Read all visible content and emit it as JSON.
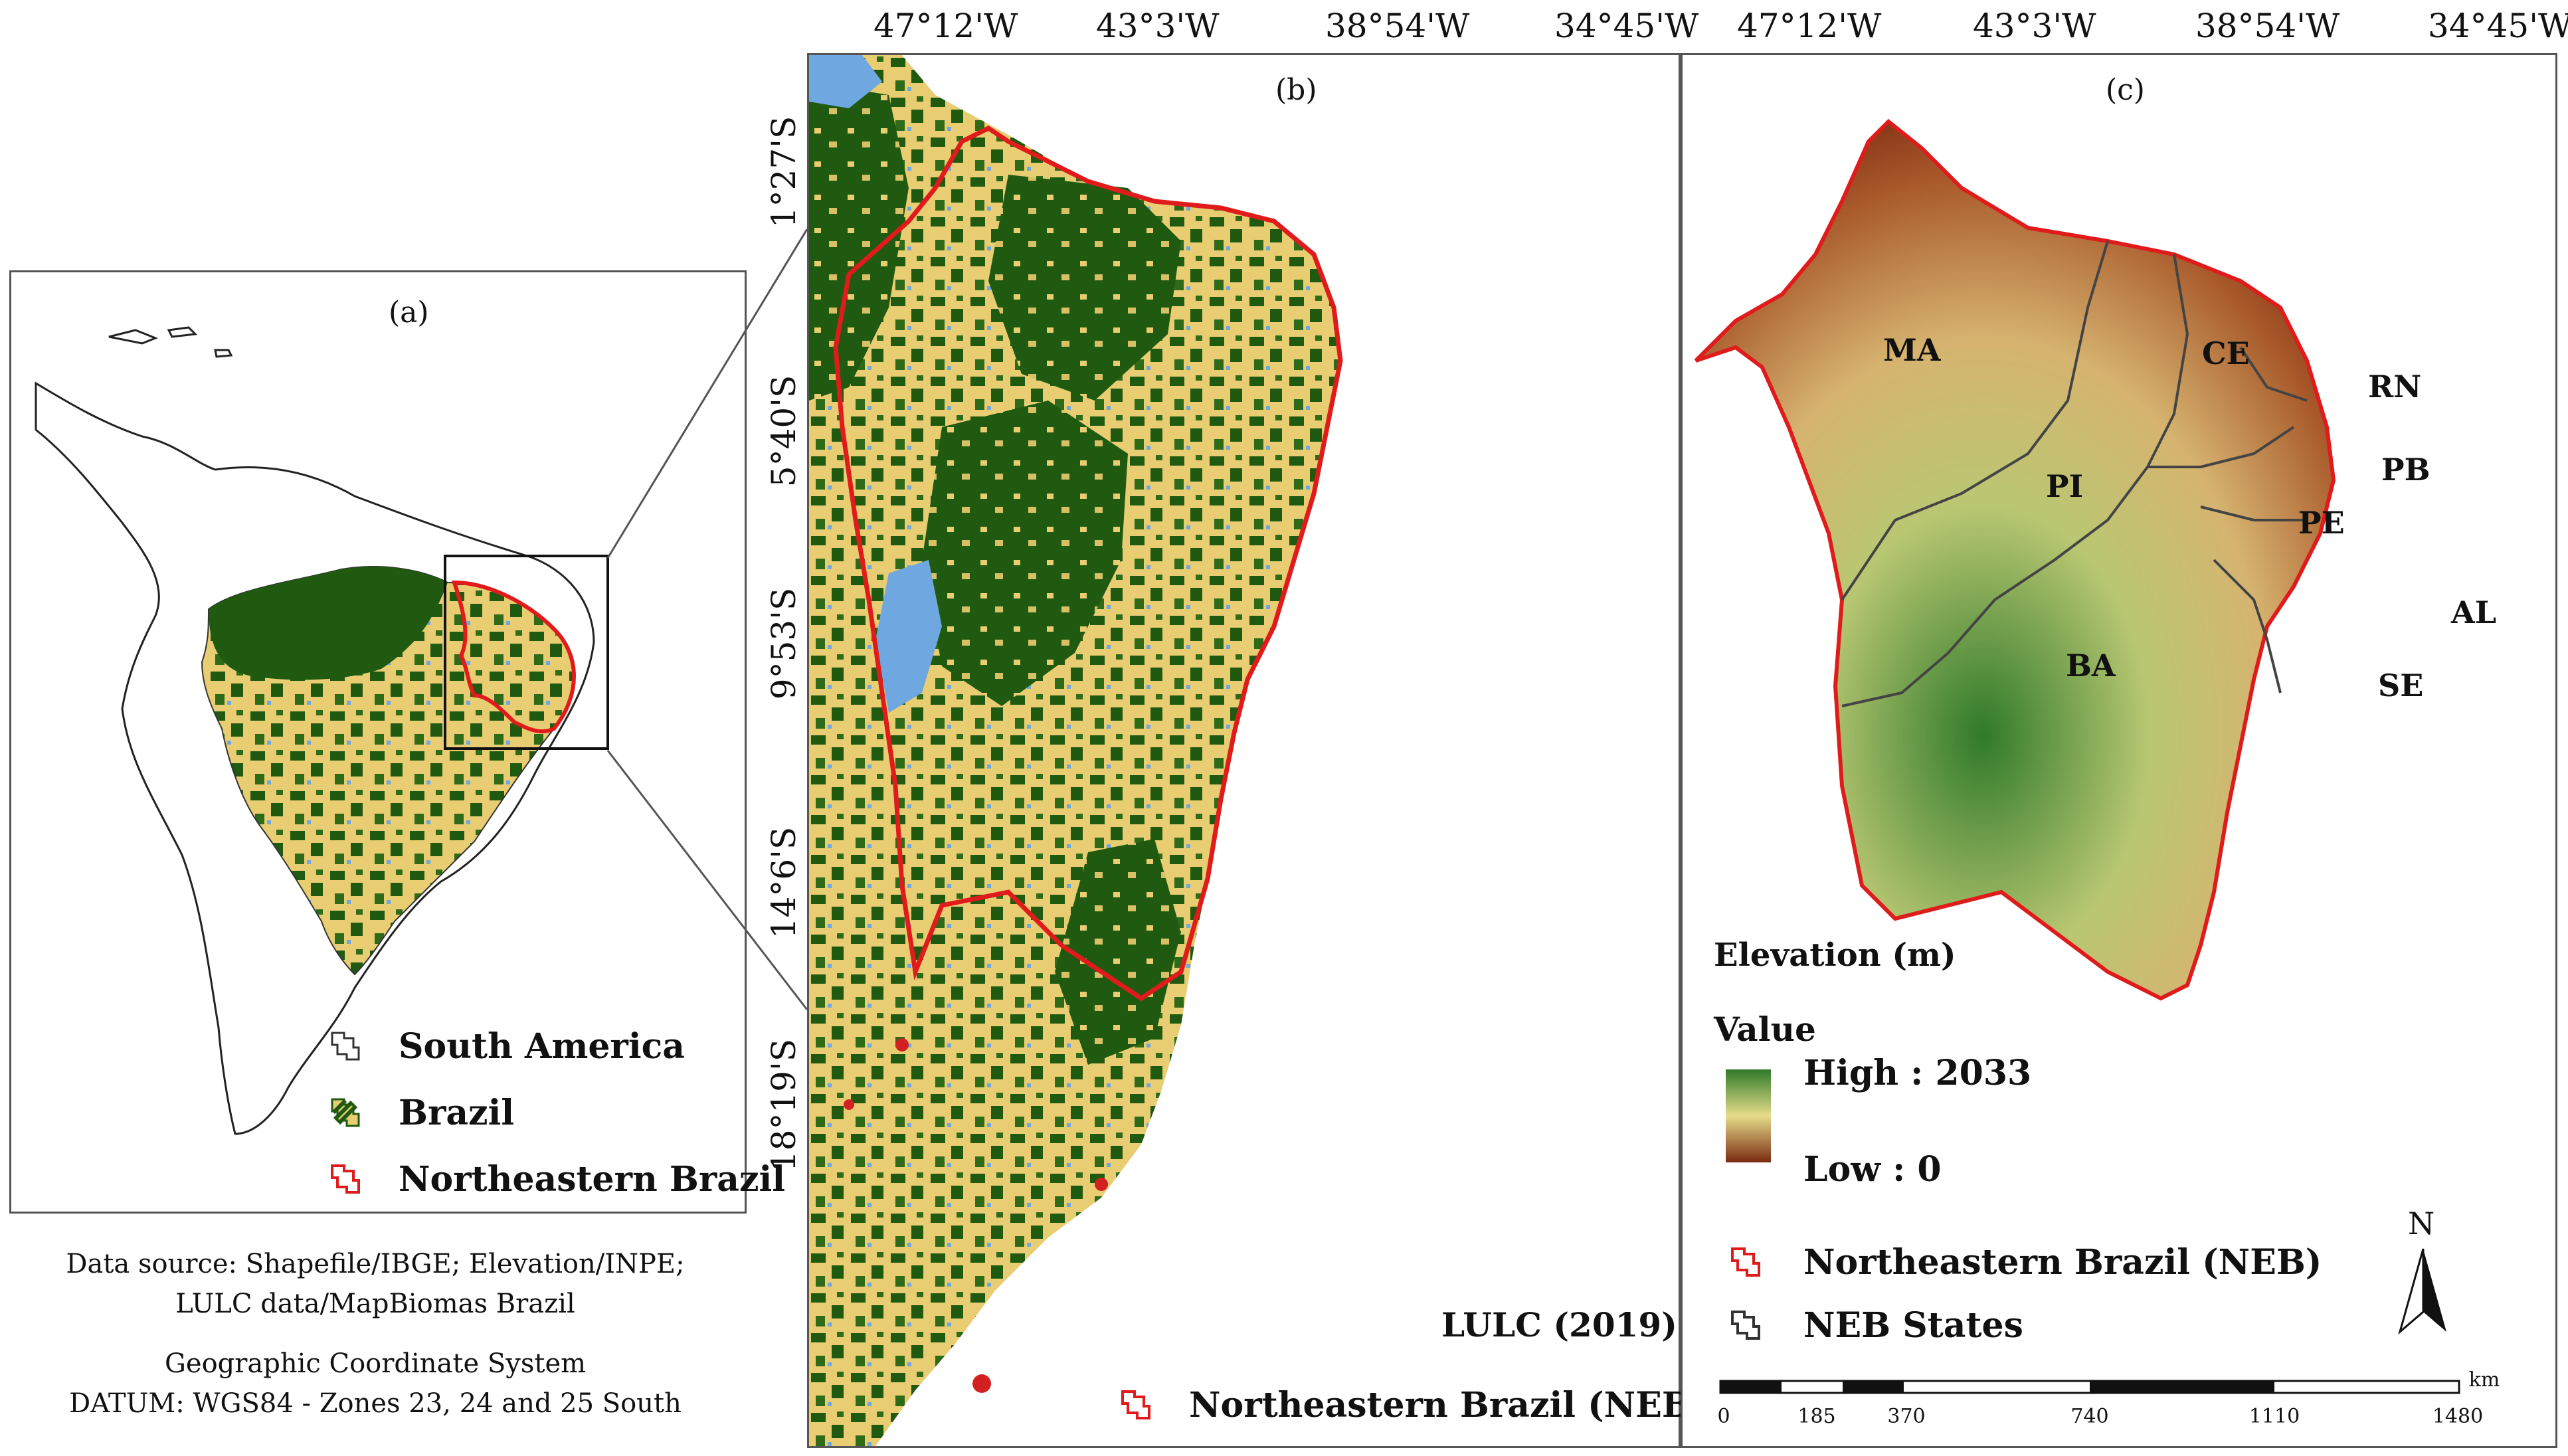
{
  "panels": {
    "a": {
      "label": "(a)",
      "legend": {
        "south_america": "South America",
        "brazil": "Brazil",
        "neb": "Northeastern Brazil"
      }
    },
    "b": {
      "label": "(b)",
      "title": "LULC (2019)",
      "legend_neb": "Northeastern Brazil (NEB)"
    },
    "c": {
      "label": "(c)",
      "legend_title": "Elevation (m)",
      "value_label": "Value",
      "high_label": "High : 2033",
      "low_label": "Low : 0",
      "legend_neb": "Northeastern Brazil (NEB)",
      "legend_states": "NEB States",
      "north_label": "N",
      "scale": {
        "unit": "km",
        "ticks": [
          "0",
          "185",
          "370",
          "740",
          "1110",
          "1480"
        ]
      },
      "states": [
        "MA",
        "CE",
        "RN",
        "PB",
        "PI",
        "PE",
        "AL",
        "SE",
        "BA"
      ]
    }
  },
  "coordinates": {
    "b_longitudes": [
      "47°12'W",
      "43°3'W",
      "38°54'W",
      "34°45'W"
    ],
    "c_longitudes": [
      "47°12'W",
      "43°3'W",
      "38°54'W",
      "34°45'W"
    ],
    "b_latitudes": [
      "1°27'S",
      "5°40'S",
      "9°53'S",
      "14°6'S",
      "18°19'S"
    ]
  },
  "notes": {
    "data_source_line1": "Data source: Shapefile/IBGE; Elevation/INPE;",
    "data_source_line2": "LULC data/MapBiomas Brazil",
    "crs_line1": "Geographic Coordinate System",
    "crs_line2": "DATUM: WGS84 - Zones 23, 24 and 25 South"
  },
  "colors": {
    "forest": "#1f5a10",
    "savanna": "#e9cd73",
    "water": "#6fa8e0",
    "urban": "#d32020",
    "neb_outline": "#e01b1b",
    "elev_high": "#2f7a2a",
    "elev_mid": "#e6dc8a",
    "elev_low": "#7a2a10"
  }
}
